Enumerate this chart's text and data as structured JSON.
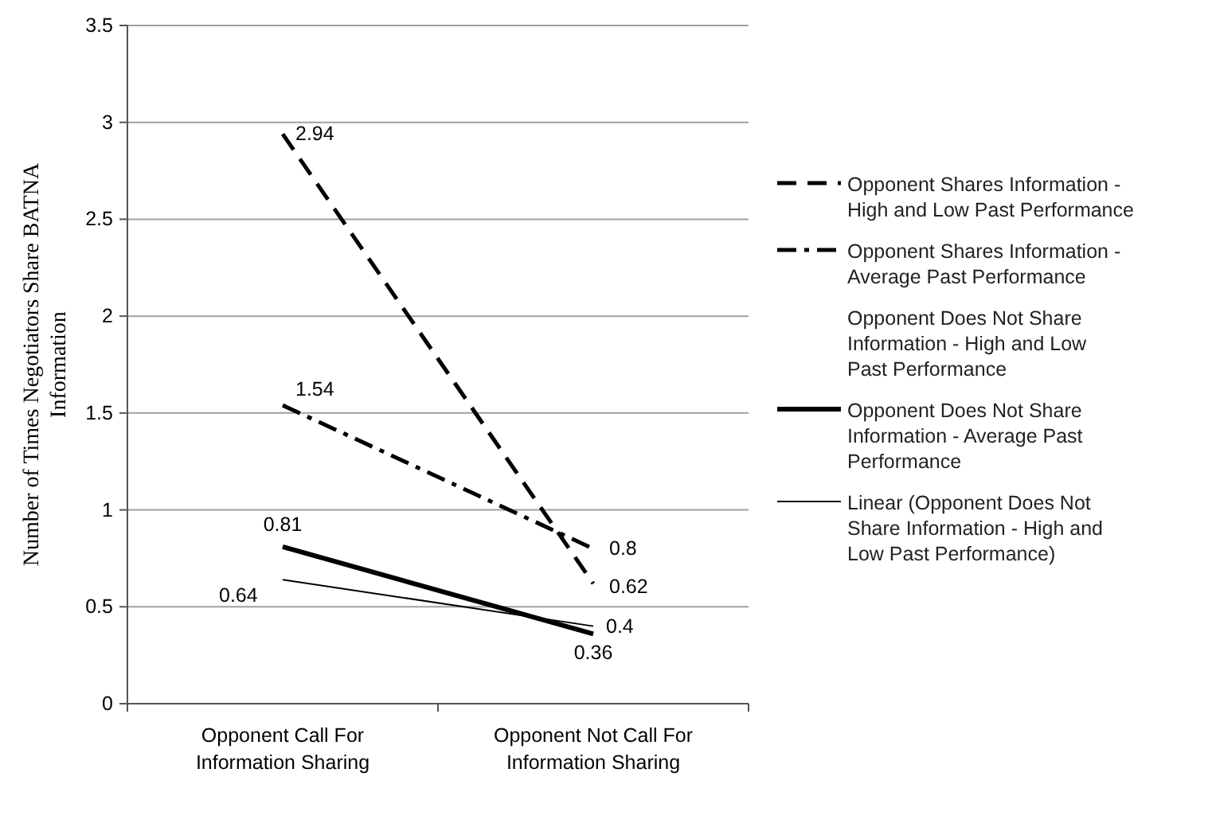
{
  "chart_data": {
    "type": "line",
    "ylabel": "Number of Times  Negotiators Share  BATNA Information",
    "categories": [
      "Opponent Call For Information Sharing",
      "Opponent Not Call For Information Sharing"
    ],
    "ylim": [
      0,
      3.5
    ],
    "yticks": [
      0,
      0.5,
      1,
      1.5,
      2,
      2.5,
      3,
      3.5
    ],
    "grid": "y",
    "legend": "right",
    "annotations": [
      "Opponent Does Not Share Information - High and Low Past Performance"
    ],
    "marker": "none",
    "series": [
      {
        "name": "Opponent Shares Information - High and Low Past Performance",
        "color": "#000000",
        "line_style": "dashed",
        "values": [
          2.94,
          0.62
        ],
        "value_labels": [
          "2.94",
          "0.62"
        ]
      },
      {
        "name": "Opponent Shares Information - Average Past Performance",
        "color": "#000000",
        "line_style": "dashdot",
        "values": [
          1.54,
          0.8
        ],
        "value_labels": [
          "1.54",
          "0.8"
        ]
      },
      {
        "name": "Opponent Does Not Share Information - Average Past Performance",
        "color": "#000000",
        "line_style": "solid",
        "values": [
          0.81,
          0.36
        ],
        "value_labels": [
          "0.81",
          "0.36"
        ]
      },
      {
        "name": "Linear (Opponent Does Not Share Information - High and Low Past Performance)",
        "type": "line",
        "color": "#000000",
        "line_style": "solid",
        "values": [
          0.64,
          0.4
        ],
        "value_labels": [
          "0.64",
          "0.4"
        ]
      }
    ]
  }
}
